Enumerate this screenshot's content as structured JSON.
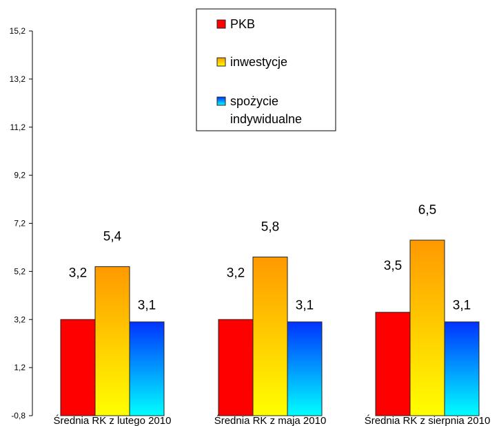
{
  "chart_data": {
    "type": "bar",
    "categories": [
      "Średnia RK z lutego 2010",
      "Średnia RK z maja 2010",
      "Średnia RK z sierpnia 2010"
    ],
    "series": [
      {
        "name": "PKB",
        "values": [
          3.2,
          3.2,
          3.5
        ],
        "labels": [
          "3,2",
          "3,2",
          "3,5"
        ],
        "color": "#ff0000"
      },
      {
        "name": "inwestycje",
        "values": [
          5.4,
          5.8,
          6.5
        ],
        "labels": [
          "5,4",
          "5,8",
          "6,5"
        ],
        "color_top": "#ff9900",
        "color_bottom": "#ffff00"
      },
      {
        "name": "spożycie indywidualne",
        "values": [
          3.1,
          3.1,
          3.1
        ],
        "labels": [
          "3,1",
          "3,1",
          "3,1"
        ],
        "color_top": "#0033ff",
        "color_bottom": "#00ffff"
      }
    ],
    "legend": {
      "position": "top-center",
      "entries": [
        {
          "lines": [
            "PKB"
          ]
        },
        {
          "lines": [
            "inwestycje"
          ]
        },
        {
          "lines": [
            "spożycie",
            "indywidualne"
          ]
        }
      ]
    },
    "yaxis": {
      "ylim": [
        -0.8,
        15.2
      ],
      "ticks": [
        -0.8,
        1.2,
        3.2,
        5.2,
        7.2,
        9.2,
        11.2,
        13.2,
        15.2
      ],
      "tick_labels": [
        "-0,8",
        "1,2",
        "3,2",
        "5,2",
        "7,2",
        "9,2",
        "11,2",
        "13,2",
        "15,2"
      ]
    },
    "title": "",
    "xlabel": "",
    "ylabel": "",
    "grid": false
  }
}
